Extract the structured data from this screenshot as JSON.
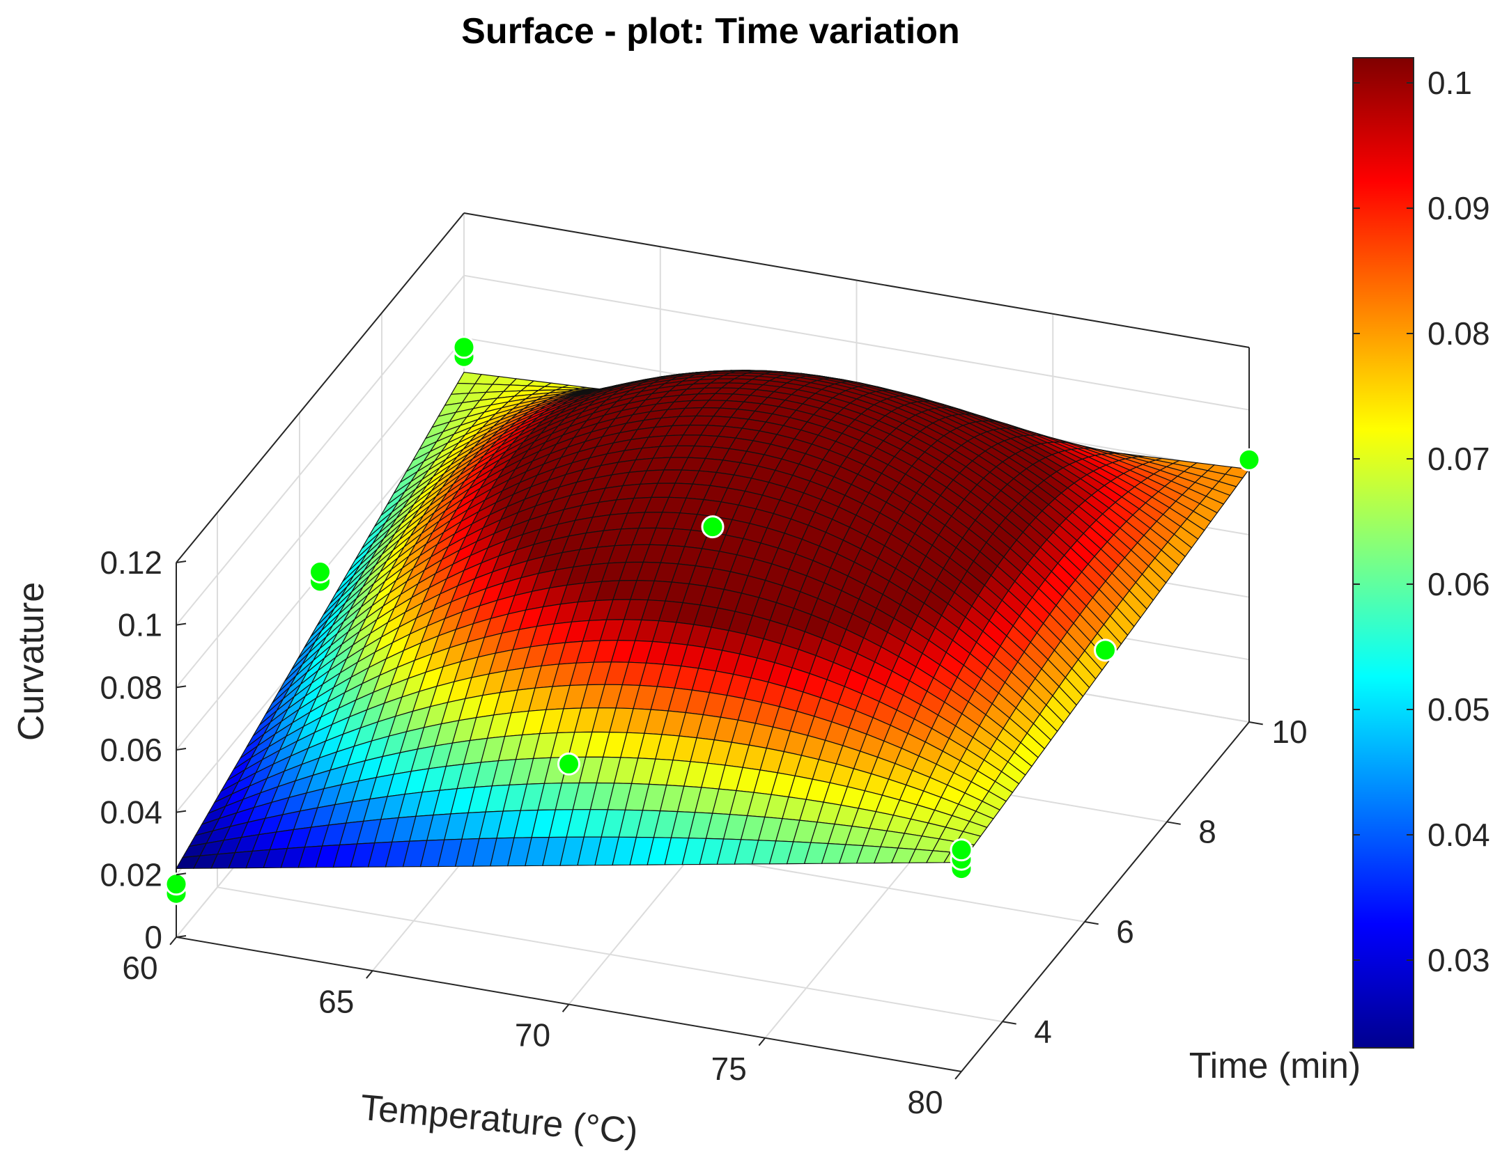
{
  "chart_data": {
    "type": "surface3d",
    "title": "Surface - plot: Time variation",
    "xlabel": "Temperature (°C)",
    "ylabel": "Time (min)",
    "zlabel": "Curvature",
    "xlim": [
      60,
      80
    ],
    "ylim": [
      3,
      10
    ],
    "zlim": [
      0,
      0.12
    ],
    "xticks": [
      "60",
      "65",
      "70",
      "75",
      "80"
    ],
    "yticks": [
      "4",
      "6",
      "8",
      "10"
    ],
    "zticks": [
      "0",
      "0.02",
      "0.04",
      "0.06",
      "0.08",
      "0.1",
      "0.12"
    ],
    "colormap": "jet",
    "colorbar": {
      "range": [
        0.023,
        0.102
      ],
      "ticks": [
        "0.03",
        "0.04",
        "0.05",
        "0.06",
        "0.07",
        "0.08",
        "0.09",
        "0.1"
      ],
      "tick_values": [
        0.03,
        0.04,
        0.05,
        0.06,
        0.07,
        0.08,
        0.09,
        0.1
      ]
    },
    "surface": {
      "corners": [
        {
          "x": 60,
          "y": 3,
          "z": 0.022
        },
        {
          "x": 60,
          "y": 10,
          "z": 0.069
        },
        {
          "x": 80,
          "y": 10,
          "z": 0.081
        },
        {
          "x": 80,
          "y": 3,
          "z": 0.067
        }
      ],
      "peak": {
        "x": 74,
        "y": 9,
        "z": 0.102
      }
    },
    "observations": [
      {
        "x": 60,
        "y": 3,
        "z": 0.014
      },
      {
        "x": 60,
        "y": 3,
        "z": 0.017
      },
      {
        "x": 60,
        "y": 6.5,
        "z": 0.058
      },
      {
        "x": 60,
        "y": 6.5,
        "z": 0.061
      },
      {
        "x": 60,
        "y": 10,
        "z": 0.074
      },
      {
        "x": 60,
        "y": 10,
        "z": 0.077
      },
      {
        "x": 70,
        "y": 3,
        "z": 0.077
      },
      {
        "x": 70,
        "y": 6.5,
        "z": 0.097
      },
      {
        "x": 80,
        "y": 3,
        "z": 0.065
      },
      {
        "x": 80,
        "y": 3,
        "z": 0.068
      },
      {
        "x": 80,
        "y": 3,
        "z": 0.071
      },
      {
        "x": 80,
        "y": 6.5,
        "z": 0.079
      },
      {
        "x": 80,
        "y": 10,
        "z": 0.084
      }
    ],
    "colors": {
      "observation_marker": "#00ff00",
      "box": "#262626",
      "grid": "#dcdcdc"
    }
  }
}
